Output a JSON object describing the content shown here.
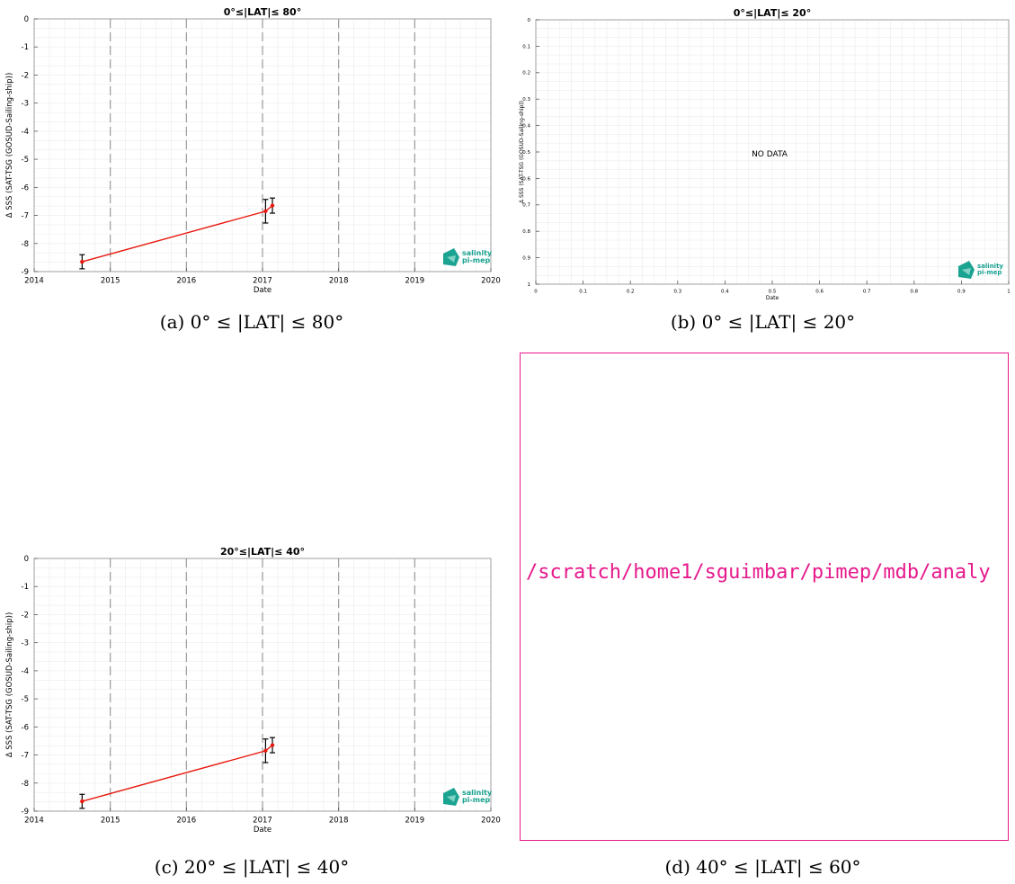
{
  "panels": [
    {
      "id": "a",
      "caption": "(a) 0° ≤ |LAT| ≤ 80°",
      "chart_data": {
        "type": "line",
        "title": "0°≤|LAT|≤ 80°",
        "xlabel": "Date",
        "ylabel": "Δ SSS (SAT-TSG (GOSUD-Sailing-ship))",
        "xlim": [
          2014,
          2020
        ],
        "ylim": [
          -9,
          0
        ],
        "xticks": [
          "2014",
          "2015",
          "2016",
          "2017",
          "2018",
          "2019",
          "2020"
        ],
        "yticks": [
          "0",
          "-1",
          "-2",
          "-3",
          "-4",
          "-5",
          "-6",
          "-7",
          "-8",
          "-9"
        ],
        "year_boundaries": [
          2015,
          2016,
          2017,
          2018,
          2019
        ],
        "grid": true,
        "line_color": "#e8190f",
        "points": [
          {
            "x": 2014.63,
            "y": -8.65,
            "err": 0.25
          },
          {
            "x": 2017.04,
            "y": -6.85,
            "err": 0.42
          },
          {
            "x": 2017.13,
            "y": -6.65,
            "err": 0.27
          }
        ],
        "logo": {
          "line1": "salinity",
          "line2": "pi-mep"
        }
      }
    },
    {
      "id": "b",
      "caption": "(b) 0° ≤ |LAT| ≤ 20°",
      "chart_data": {
        "type": "line",
        "title": "0°≤|LAT|≤ 20°",
        "xlabel": "Date",
        "ylabel": "Δ SSS (SAT-TSG (GOSUD-Sailing-ship))",
        "xlim": [
          0,
          1
        ],
        "ylim": [
          0,
          1
        ],
        "xticks": [
          "0",
          "0.1",
          "0.2",
          "0.3",
          "0.4",
          "0.5",
          "0.6",
          "0.7",
          "0.8",
          "0.9",
          "1"
        ],
        "yticks": [
          "0",
          "0.1",
          "0.2",
          "0.3",
          "0.4",
          "0.5",
          "0.6",
          "0.7",
          "0.8",
          "0.9",
          "1"
        ],
        "grid": true,
        "annotation": "NO DATA",
        "points": [],
        "logo": {
          "line1": "salinity",
          "line2": "pi-mep"
        }
      }
    },
    {
      "id": "c",
      "caption": "(c) 20° ≤ |LAT| ≤ 40°",
      "chart_data": {
        "type": "line",
        "title": "20°≤|LAT|≤ 40°",
        "xlabel": "Date",
        "ylabel": "Δ SSS (SAT-TSG (GOSUD-Sailing-ship))",
        "xlim": [
          2014,
          2020
        ],
        "ylim": [
          -9,
          0
        ],
        "xticks": [
          "2014",
          "2015",
          "2016",
          "2017",
          "2018",
          "2019",
          "2020"
        ],
        "yticks": [
          "0",
          "-1",
          "-2",
          "-3",
          "-4",
          "-5",
          "-6",
          "-7",
          "-8",
          "-9"
        ],
        "year_boundaries": [
          2015,
          2016,
          2017,
          2018,
          2019
        ],
        "grid": true,
        "line_color": "#e8190f",
        "points": [
          {
            "x": 2014.63,
            "y": -8.65,
            "err": 0.25
          },
          {
            "x": 2017.04,
            "y": -6.85,
            "err": 0.42
          },
          {
            "x": 2017.13,
            "y": -6.65,
            "err": 0.27
          }
        ],
        "logo": {
          "line1": "salinity",
          "line2": "pi-mep"
        }
      }
    },
    {
      "id": "d",
      "caption": "(d) 40° ≤ |LAT| ≤ 60°",
      "missing_path": "/scratch/home1/sguimbar/pimep/mdb/analy"
    }
  ],
  "colors": {
    "missing_border": "#e6198c",
    "logo": "#1aa391"
  }
}
